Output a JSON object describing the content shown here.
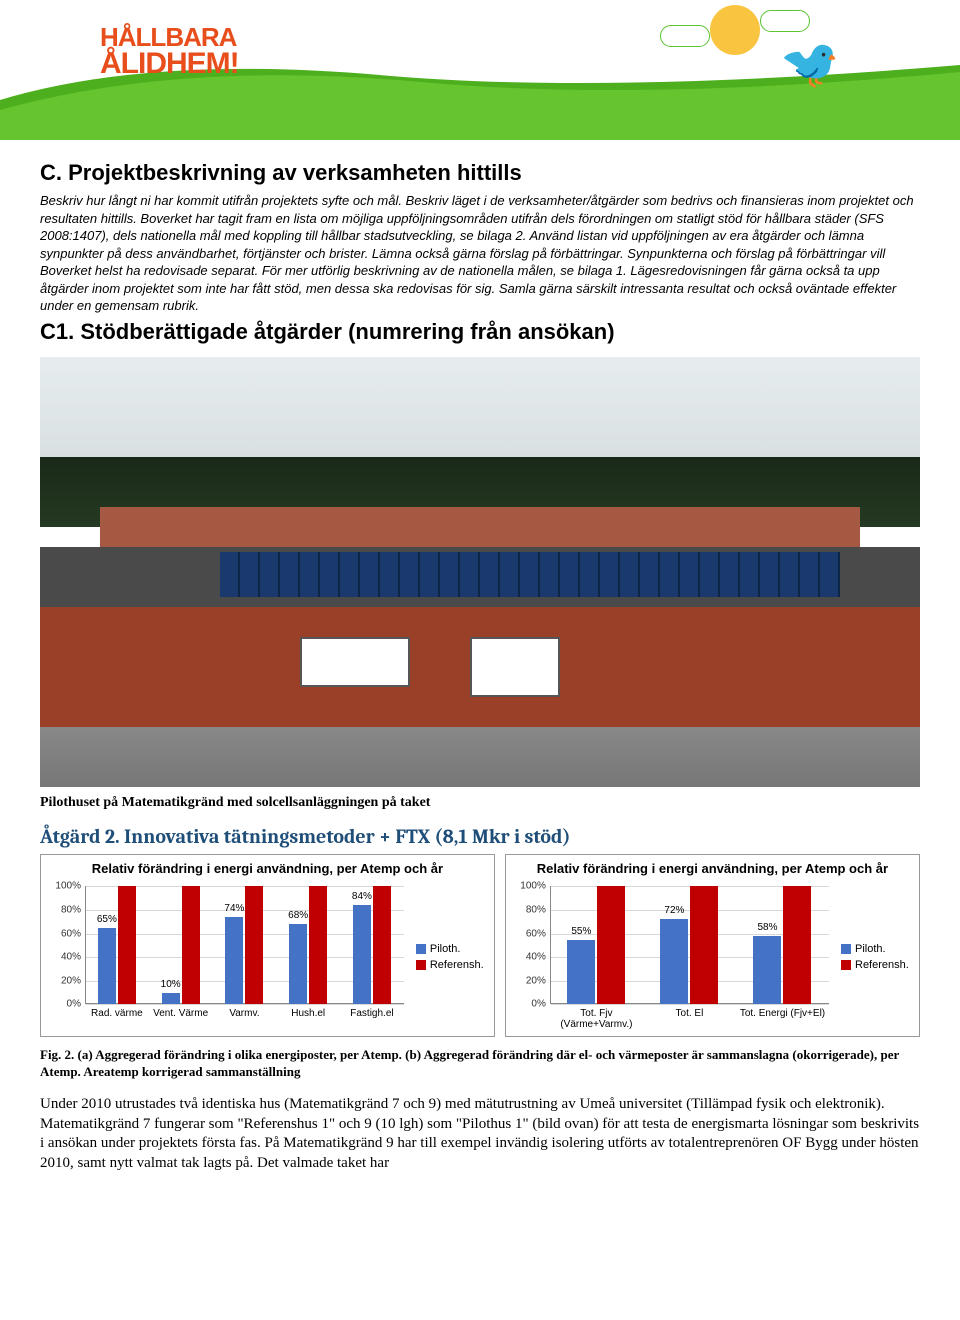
{
  "banner": {
    "logo_line1": "HÅLLBARA",
    "logo_line2": "ÅLIDHEM!",
    "hill_color": "#66c52f",
    "hill_shadow": "#4daf1e"
  },
  "section_c": {
    "title": "C. Projektbeskrivning av verksamheten hittills",
    "intro": "Beskriv hur långt ni har kommit utifrån projektets syfte och mål. Beskriv läget i de verksamheter/åtgärder som bedrivs och finansieras inom projektet och resultaten hittills. Boverket har tagit fram en lista om möjliga uppföljningsområden utifrån dels förordningen om statligt stöd för hållbara städer (SFS 2008:1407), dels nationella mål med koppling till hållbar stadsutveckling, se bilaga 2. Använd listan vid uppföljningen av era åtgärder och lämna synpunkter på dess användbarhet, förtjänster och brister. Lämna också gärna förslag på förbättringar. Synpunkterna och förslag på förbättringar vill Boverket helst ha redovisade separat. För mer utförlig beskrivning av de nationella målen, se bilaga 1. Lägesredovisningen får gärna också ta upp åtgärder inom projektet som inte har fått stöd, men dessa ska redovisas för sig. Samla gärna särskilt intressanta resultat och också oväntade effekter under en gemensam rubrik."
  },
  "section_c1": {
    "title": "C1. Stödberättigade åtgärder (numrering från ansökan)"
  },
  "photo": {
    "caption": "Pilothuset på Matematikgränd med solcellsanläggningen på taket"
  },
  "atgard2": {
    "title": "Åtgärd 2. Innovativa tätningsmetoder + FTX (8,1 Mkr i stöd)"
  },
  "chart_a": {
    "title": "Relativ förändring i energi användning, per Atemp och år",
    "ylim": [
      0,
      100
    ],
    "ytick_step": 20,
    "categories": [
      "Rad. värme",
      "Vent. Värme",
      "Varmv.",
      "Hush.el",
      "Fastigh.el"
    ],
    "series": [
      {
        "name": "Piloth.",
        "color": "#4472c4",
        "values": [
          65,
          10,
          74,
          68,
          84
        ]
      },
      {
        "name": "Referensh.",
        "color": "#c00000",
        "values": [
          100,
          100,
          100,
          100,
          100
        ]
      }
    ],
    "show_labels_on": 0
  },
  "chart_b": {
    "title": "Relativ förändring i energi användning, per Atemp och år",
    "ylim": [
      0,
      100
    ],
    "ytick_step": 20,
    "categories": [
      "Tot. Fjv (Värme+Varmv.)",
      "Tot. El",
      "Tot. Energi (Fjv+El)"
    ],
    "series": [
      {
        "name": "Piloth.",
        "color": "#4472c4",
        "values": [
          55,
          72,
          58
        ]
      },
      {
        "name": "Referensh.",
        "color": "#c00000",
        "values": [
          100,
          100,
          100
        ]
      }
    ],
    "show_labels_on": 0
  },
  "fig_caption": "Fig. 2. (a) Aggregerad förändring i olika energiposter, per Atemp. (b) Aggregerad förändring där el- och värmeposter är sammanslagna (okorrigerade), per Atemp. Areatemp korrigerad sammanställning",
  "body": "Under 2010 utrustades två identiska hus (Matematikgränd 7 och 9) med mätutrustning av Umeå universitet (Tillämpad fysik och elektronik). Matematikgränd 7 fungerar som \"Referenshus 1\" och 9 (10 lgh) som \"Pilothus 1\" (bild ovan) för att testa de energismarta lösningar som beskrivits i ansökan under projektets första fas. På Matematikgränd 9 har till exempel invändig isolering utförts av totalentreprenören OF Bygg under hösten 2010, samt nytt valmat tak lagts på. Det valmade taket har"
}
